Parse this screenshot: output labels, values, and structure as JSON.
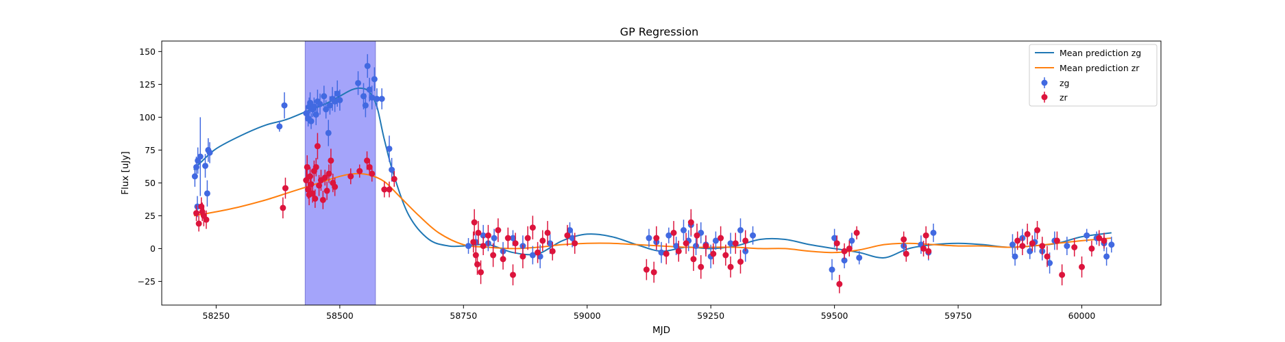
{
  "chart_data": {
    "type": "scatter",
    "title": "GP Regression",
    "xlabel": "MJD",
    "ylabel": "Flux [uJy]",
    "xlim": [
      58140,
      60160
    ],
    "ylim": [
      -43,
      158
    ],
    "xticks": [
      58250,
      58500,
      58750,
      59000,
      59250,
      59500,
      59750,
      60000
    ],
    "yticks": [
      -25,
      0,
      25,
      50,
      75,
      100,
      125,
      150
    ],
    "grid": false,
    "legend_position": "top-right",
    "shaded_region": {
      "x_start": 58430,
      "x_end": 58572,
      "color": "#a4a4fa"
    },
    "mean_zg": {
      "name": "Mean prediction zg",
      "color": "#1f77b4",
      "x": [
        58205,
        58220,
        58250,
        58300,
        58350,
        58390,
        58430,
        58470,
        58500,
        58525,
        58545,
        58560,
        58575,
        58590,
        58610,
        58640,
        58680,
        58720,
        58750,
        58800,
        58850,
        58900,
        58950,
        59000,
        59050,
        59100,
        59150,
        59200,
        59250,
        59300,
        59350,
        59400,
        59450,
        59500,
        59550,
        59600,
        59650,
        59700,
        59750,
        59800,
        59850,
        59900,
        59950,
        60000,
        60060
      ],
      "y": [
        60,
        66,
        76,
        86,
        94,
        98,
        104,
        110,
        116,
        121,
        122,
        119,
        108,
        83,
        55,
        25,
        7,
        2,
        2,
        3,
        -3,
        -4,
        6,
        11,
        9,
        3,
        -2,
        1,
        0,
        2,
        7,
        7,
        3,
        0,
        -3,
        -7,
        0,
        3,
        4,
        3,
        1,
        2,
        4,
        9,
        12
      ]
    },
    "mean_zr": {
      "name": "Mean prediction zr",
      "color": "#ff7f0e",
      "x": [
        58205,
        58250,
        58300,
        58350,
        58400,
        58450,
        58500,
        58530,
        58560,
        58590,
        58620,
        58660,
        58700,
        58750,
        58800,
        58850,
        58900,
        58950,
        59000,
        59050,
        59100,
        59150,
        59200,
        59250,
        59300,
        59350,
        59400,
        59450,
        59500,
        59550,
        59600,
        59650,
        59700,
        59750,
        59800,
        59850,
        59900,
        59950,
        60000,
        60060
      ],
      "y": [
        25,
        28,
        32,
        37,
        43,
        49,
        55,
        57,
        56,
        51,
        40,
        25,
        12,
        3,
        1,
        0,
        1,
        3,
        4,
        4,
        3,
        2,
        1,
        1,
        1,
        0,
        0,
        -2,
        -3,
        -1,
        3,
        4,
        3,
        2,
        2,
        1,
        2,
        4,
        6,
        8
      ]
    },
    "series": [
      {
        "name": "zg",
        "color": "#4169e1",
        "points": [
          [
            58207,
            55,
            8
          ],
          [
            58210,
            62,
            8
          ],
          [
            58212,
            32,
            8
          ],
          [
            58213,
            67,
            10
          ],
          [
            58218,
            70,
            30
          ],
          [
            58228,
            63,
            9
          ],
          [
            58232,
            42,
            10
          ],
          [
            58234,
            75,
            9
          ],
          [
            58237,
            73,
            8
          ],
          [
            58378,
            93,
            4
          ],
          [
            58388,
            109,
            10
          ],
          [
            58432,
            103,
            6
          ],
          [
            58436,
            99,
            6
          ],
          [
            58438,
            108,
            7
          ],
          [
            58440,
            111,
            8
          ],
          [
            58442,
            97,
            6
          ],
          [
            58445,
            106,
            6
          ],
          [
            58448,
            108,
            7
          ],
          [
            58452,
            102,
            8
          ],
          [
            58455,
            112,
            9
          ],
          [
            58460,
            110,
            8
          ],
          [
            58468,
            116,
            8
          ],
          [
            58472,
            106,
            7
          ],
          [
            58477,
            88,
            10
          ],
          [
            58480,
            109,
            7
          ],
          [
            58485,
            114,
            9
          ],
          [
            58490,
            112,
            8
          ],
          [
            58495,
            118,
            10
          ],
          [
            58500,
            113,
            8
          ],
          [
            58537,
            126,
            9
          ],
          [
            58548,
            116,
            10
          ],
          [
            58552,
            109,
            9
          ],
          [
            58556,
            139,
            9
          ],
          [
            58560,
            121,
            9
          ],
          [
            58565,
            115,
            9
          ],
          [
            58570,
            129,
            9
          ],
          [
            58575,
            114,
            8
          ],
          [
            58585,
            114,
            8
          ],
          [
            58600,
            76,
            10
          ],
          [
            58605,
            60,
            9
          ],
          [
            58760,
            2,
            6
          ],
          [
            58775,
            5,
            7
          ],
          [
            58790,
            10,
            8
          ],
          [
            58800,
            4,
            6
          ],
          [
            58812,
            8,
            7
          ],
          [
            58830,
            -2,
            7
          ],
          [
            58850,
            8,
            6
          ],
          [
            58870,
            2,
            8
          ],
          [
            58890,
            -5,
            7
          ],
          [
            58905,
            -6,
            9
          ],
          [
            58925,
            4,
            8
          ],
          [
            58965,
            14,
            6
          ],
          [
            58970,
            8,
            7
          ],
          [
            59125,
            8,
            7
          ],
          [
            59140,
            5,
            7
          ],
          [
            59150,
            -3,
            8
          ],
          [
            59165,
            10,
            6
          ],
          [
            59180,
            2,
            7
          ],
          [
            59195,
            14,
            8
          ],
          [
            59205,
            6,
            8
          ],
          [
            59210,
            18,
            9
          ],
          [
            59220,
            2,
            7
          ],
          [
            59230,
            12,
            8
          ],
          [
            59240,
            3,
            7
          ],
          [
            59250,
            -6,
            9
          ],
          [
            59260,
            6,
            7
          ],
          [
            59290,
            4,
            8
          ],
          [
            59310,
            14,
            9
          ],
          [
            59320,
            -2,
            8
          ],
          [
            59335,
            10,
            7
          ],
          [
            59495,
            -16,
            8
          ],
          [
            59500,
            8,
            7
          ],
          [
            59520,
            -9,
            6
          ],
          [
            59535,
            6,
            6
          ],
          [
            59550,
            -7,
            5
          ],
          [
            59640,
            2,
            6
          ],
          [
            59675,
            3,
            7
          ],
          [
            59690,
            -3,
            6
          ],
          [
            59700,
            12,
            7
          ],
          [
            59860,
            3,
            8
          ],
          [
            59865,
            -6,
            7
          ],
          [
            59880,
            8,
            7
          ],
          [
            59895,
            -2,
            6
          ],
          [
            59905,
            5,
            8
          ],
          [
            59920,
            -2,
            7
          ],
          [
            59935,
            -11,
            8
          ],
          [
            59945,
            6,
            7
          ],
          [
            59970,
            2,
            7
          ],
          [
            60010,
            10,
            5
          ],
          [
            60030,
            8,
            5
          ],
          [
            60045,
            4,
            6
          ],
          [
            60050,
            -6,
            7
          ],
          [
            60060,
            3,
            6
          ]
        ]
      },
      {
        "name": "zr",
        "color": "#dc143c",
        "points": [
          [
            58210,
            27,
            6
          ],
          [
            58215,
            19,
            6
          ],
          [
            58220,
            32,
            7
          ],
          [
            58222,
            28,
            7
          ],
          [
            58225,
            25,
            8
          ],
          [
            58230,
            22,
            7
          ],
          [
            58385,
            31,
            8
          ],
          [
            58390,
            46,
            8
          ],
          [
            58432,
            52,
            9
          ],
          [
            58434,
            62,
            9
          ],
          [
            58436,
            45,
            7
          ],
          [
            58438,
            41,
            8
          ],
          [
            58440,
            55,
            7
          ],
          [
            58442,
            49,
            8
          ],
          [
            58445,
            42,
            7
          ],
          [
            58448,
            59,
            8
          ],
          [
            58450,
            38,
            7
          ],
          [
            58452,
            62,
            7
          ],
          [
            58455,
            78,
            10
          ],
          [
            58458,
            48,
            8
          ],
          [
            58462,
            52,
            8
          ],
          [
            58466,
            37,
            7
          ],
          [
            58470,
            54,
            6
          ],
          [
            58474,
            44,
            7
          ],
          [
            58478,
            57,
            7
          ],
          [
            58482,
            67,
            9
          ],
          [
            58486,
            50,
            7
          ],
          [
            58490,
            47,
            7
          ],
          [
            58522,
            55,
            6
          ],
          [
            58540,
            59,
            5
          ],
          [
            58555,
            67,
            7
          ],
          [
            58560,
            62,
            6
          ],
          [
            58565,
            57,
            6
          ],
          [
            58590,
            45,
            6
          ],
          [
            58600,
            45,
            6
          ],
          [
            58610,
            53,
            6
          ],
          [
            58770,
            5,
            8
          ],
          [
            58772,
            20,
            10
          ],
          [
            58775,
            -5,
            9
          ],
          [
            58778,
            -12,
            8
          ],
          [
            58780,
            12,
            9
          ],
          [
            58785,
            -18,
            9
          ],
          [
            58790,
            2,
            7
          ],
          [
            58800,
            10,
            8
          ],
          [
            58810,
            -5,
            9
          ],
          [
            58820,
            14,
            9
          ],
          [
            58830,
            -8,
            8
          ],
          [
            58840,
            8,
            8
          ],
          [
            58850,
            -20,
            8
          ],
          [
            58855,
            4,
            8
          ],
          [
            58870,
            -6,
            9
          ],
          [
            58880,
            8,
            9
          ],
          [
            58890,
            16,
            9
          ],
          [
            58900,
            -3,
            8
          ],
          [
            58910,
            6,
            8
          ],
          [
            58920,
            12,
            9
          ],
          [
            58930,
            -2,
            7
          ],
          [
            58960,
            10,
            8
          ],
          [
            58975,
            4,
            8
          ],
          [
            59120,
            -16,
            8
          ],
          [
            59135,
            -18,
            8
          ],
          [
            59140,
            8,
            9
          ],
          [
            59160,
            -4,
            8
          ],
          [
            59175,
            12,
            9
          ],
          [
            59185,
            -2,
            8
          ],
          [
            59200,
            4,
            8
          ],
          [
            59210,
            20,
            10
          ],
          [
            59215,
            -8,
            9
          ],
          [
            59222,
            10,
            9
          ],
          [
            59230,
            -14,
            9
          ],
          [
            59240,
            2,
            8
          ],
          [
            59255,
            -4,
            8
          ],
          [
            59270,
            8,
            9
          ],
          [
            59280,
            -5,
            8
          ],
          [
            59290,
            -14,
            8
          ],
          [
            59300,
            4,
            8
          ],
          [
            59310,
            -10,
            9
          ],
          [
            59320,
            6,
            8
          ],
          [
            59505,
            4,
            6
          ],
          [
            59510,
            -27,
            7
          ],
          [
            59520,
            -2,
            6
          ],
          [
            59530,
            0,
            6
          ],
          [
            59545,
            12,
            5
          ],
          [
            59640,
            7,
            6
          ],
          [
            59645,
            -4,
            6
          ],
          [
            59680,
            0,
            6
          ],
          [
            59685,
            10,
            7
          ],
          [
            59690,
            -2,
            6
          ],
          [
            59870,
            6,
            7
          ],
          [
            59880,
            2,
            7
          ],
          [
            59890,
            11,
            8
          ],
          [
            59900,
            4,
            6
          ],
          [
            59910,
            14,
            7
          ],
          [
            59920,
            2,
            7
          ],
          [
            59930,
            -6,
            8
          ],
          [
            59950,
            6,
            7
          ],
          [
            59960,
            -20,
            8
          ],
          [
            59985,
            1,
            7
          ],
          [
            60000,
            -14,
            8
          ],
          [
            60020,
            0,
            6
          ],
          [
            60035,
            8,
            6
          ],
          [
            60045,
            6,
            6
          ]
        ]
      }
    ]
  }
}
